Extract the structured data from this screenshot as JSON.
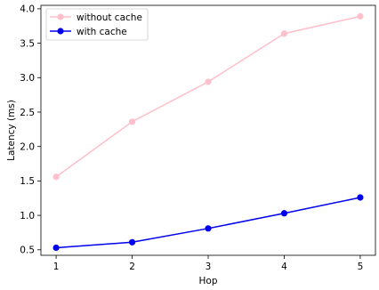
{
  "chart_data": {
    "type": "line",
    "title": "",
    "xlabel": "Hop",
    "ylabel": "Latency (ms)",
    "x": [
      1,
      2,
      3,
      4,
      5
    ],
    "xticks": [
      "1",
      "2",
      "3",
      "4",
      "5"
    ],
    "xlim": [
      0.8,
      5.2
    ],
    "ylim": [
      0.42,
      4.05
    ],
    "yticks": [
      "0.5",
      "1.0",
      "1.5",
      "2.0",
      "2.5",
      "3.0",
      "3.5",
      "4.0"
    ],
    "grid": false,
    "legend_position": "top-left",
    "series": [
      {
        "name": "without cache",
        "color": "#ffc0cb",
        "values": [
          1.56,
          2.36,
          2.94,
          3.64,
          3.89
        ]
      },
      {
        "name": "with cache",
        "color": "#0000ee",
        "values": [
          0.53,
          0.61,
          0.81,
          1.03,
          1.26
        ]
      }
    ]
  }
}
